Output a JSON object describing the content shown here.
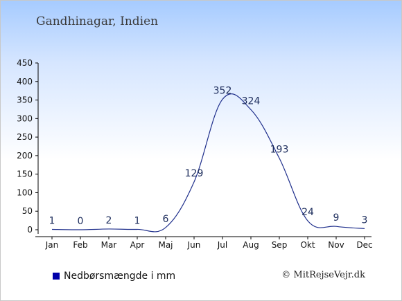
{
  "title": "Gandhinagar, Indien",
  "legend_label": "Nedbørsmængde i mm",
  "credit": "© MitRejseVejr.dk",
  "colors": {
    "line": "#1f2f8c",
    "legend_swatch": "#0000aa",
    "axis": "#000000"
  },
  "chart_data": {
    "type": "line",
    "categories": [
      "Jan",
      "Feb",
      "Mar",
      "Apr",
      "Maj",
      "Jun",
      "Jul",
      "Aug",
      "Sep",
      "Okt",
      "Nov",
      "Dec"
    ],
    "series": [
      {
        "name": "Nedbørsmængde i mm",
        "values": [
          1,
          0,
          2,
          1,
          6,
          129,
          352,
          324,
          193,
          24,
          9,
          3
        ]
      }
    ],
    "ylim": [
      0,
      450
    ],
    "yticks": [
      0,
      50,
      100,
      150,
      200,
      250,
      300,
      350,
      400,
      450
    ],
    "grid": false,
    "legend_position": "bottom-left"
  }
}
